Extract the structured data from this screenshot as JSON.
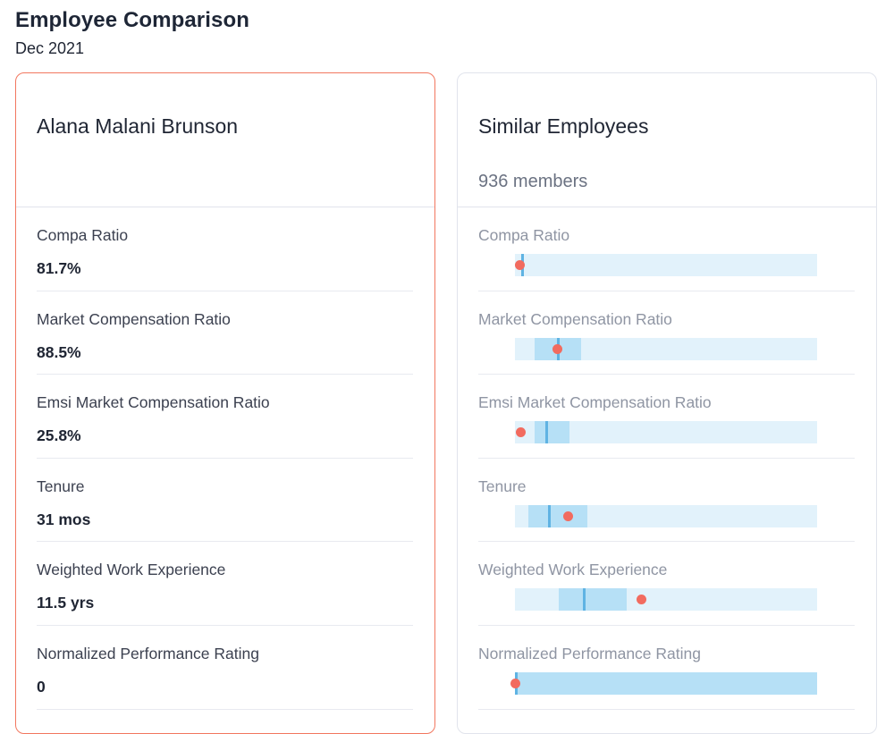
{
  "page": {
    "title": "Employee Comparison",
    "subtitle": "Dec 2021"
  },
  "employee": {
    "name": "Alana Malani Brunson",
    "metrics": [
      {
        "label": "Compa Ratio",
        "value": "81.7%"
      },
      {
        "label": "Market Compensation Ratio",
        "value": "88.5%"
      },
      {
        "label": "Emsi Market Compensation Ratio",
        "value": "25.8%"
      },
      {
        "label": "Tenure",
        "value": "31 mos"
      },
      {
        "label": "Weighted Work Experience",
        "value": "11.5 yrs"
      },
      {
        "label": "Normalized Performance Rating",
        "value": "0"
      }
    ]
  },
  "similar": {
    "title": "Similar Employees",
    "count_label": "936 members",
    "range_fill_fraction_note": "",
    "metrics": [
      {
        "label": "Compa Ratio",
        "iqr": [
          0.0,
          0.0
        ],
        "median": 0.02,
        "employee": 0.015
      },
      {
        "label": "Market Compensation Ratio",
        "iqr": [
          0.065,
          0.22
        ],
        "median": 0.14,
        "employee": 0.14
      },
      {
        "label": "Emsi Market Compensation Ratio",
        "iqr": [
          0.065,
          0.18
        ],
        "median": 0.1,
        "employee": 0.018
      },
      {
        "label": "Tenure",
        "iqr": [
          0.045,
          0.24
        ],
        "median": 0.11,
        "employee": 0.175
      },
      {
        "label": "Weighted Work Experience",
        "iqr": [
          0.145,
          0.37
        ],
        "median": 0.225,
        "employee": 0.42
      },
      {
        "label": "Normalized Performance Rating",
        "iqr": [
          0.0,
          1.0
        ],
        "median": 0.0,
        "employee": 0.0
      }
    ]
  },
  "colors": {
    "accent_border": "#f2775f",
    "range_track": "#e2f2fb",
    "range_iqr": "#b6e0f6",
    "median_marker": "#5fb3e3",
    "employee_dot": "#f26b5f"
  }
}
